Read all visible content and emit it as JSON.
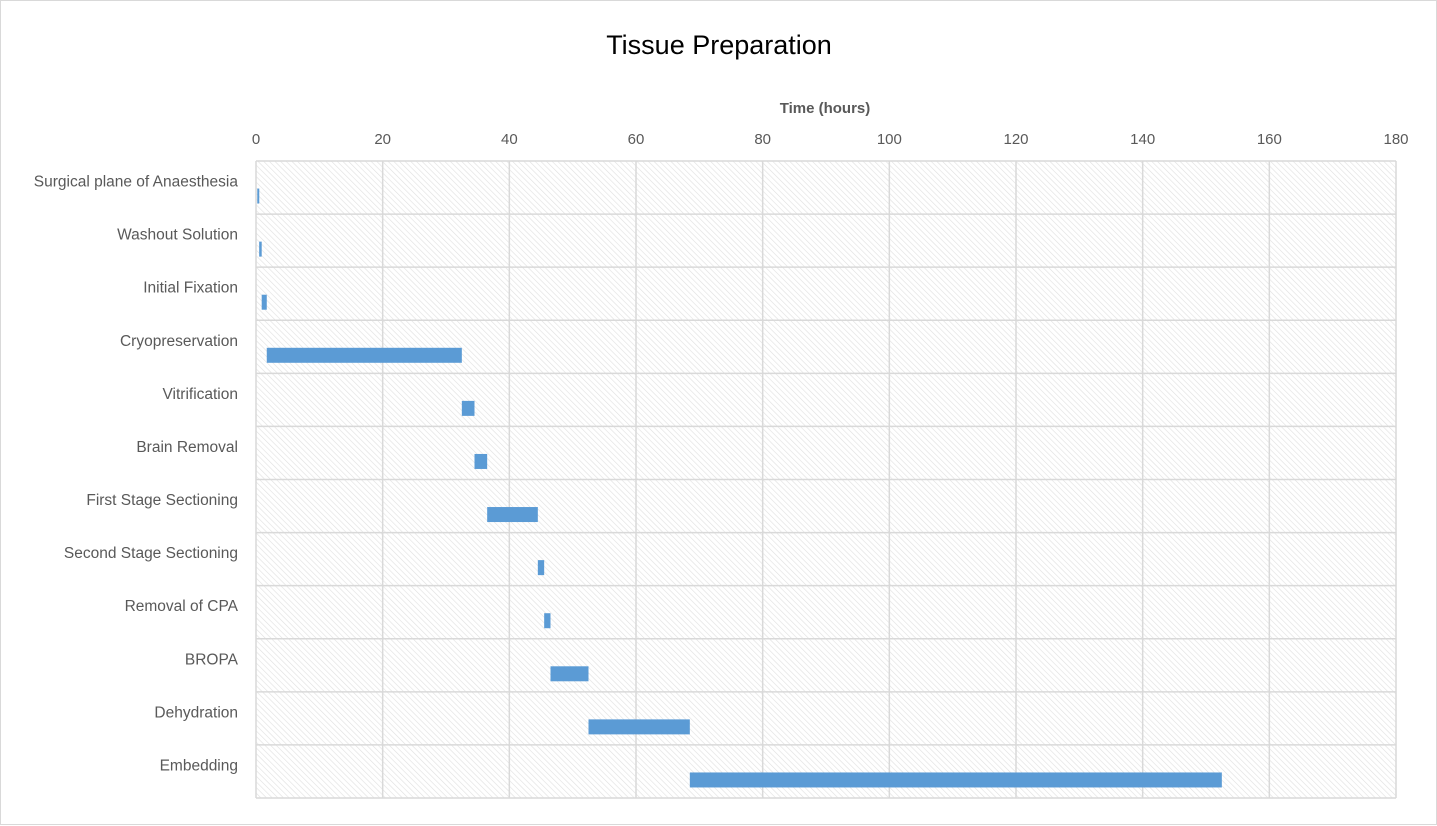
{
  "chart_data": {
    "type": "bar",
    "orientation": "horizontal",
    "style": "gantt",
    "title": "Tissue Preparation",
    "xlabel": "Time (hours)",
    "ylabel": "",
    "x_axis_position": "top",
    "xlim": [
      0,
      180
    ],
    "xticks": [
      0,
      20,
      40,
      60,
      80,
      100,
      120,
      140,
      160,
      180
    ],
    "grid": true,
    "plot_background": "hatched",
    "bar_color": "#5b9bd5",
    "grid_color": "#d9d9d9",
    "tasks": [
      {
        "label": "Surgical plane of Anaesthesia",
        "start": 0.2,
        "end": 0.5
      },
      {
        "label": "Washout Solution",
        "start": 0.5,
        "end": 0.9
      },
      {
        "label": "Initial Fixation",
        "start": 0.9,
        "end": 1.7
      },
      {
        "label": "Cryopreservation",
        "start": 1.7,
        "end": 32.5
      },
      {
        "label": "Vitrification",
        "start": 32.5,
        "end": 34.5
      },
      {
        "label": "Brain Removal ",
        "start": 34.5,
        "end": 36.5
      },
      {
        "label": "First Stage Sectioning",
        "start": 36.5,
        "end": 44.5
      },
      {
        "label": "Second Stage Sectioning ",
        "start": 44.5,
        "end": 45.5
      },
      {
        "label": "Removal of CPA",
        "start": 45.5,
        "end": 46.5
      },
      {
        "label": "BROPA",
        "start": 46.5,
        "end": 52.5
      },
      {
        "label": "Dehydration",
        "start": 52.5,
        "end": 68.5
      },
      {
        "label": "Embedding",
        "start": 68.5,
        "end": 152.5
      }
    ]
  }
}
